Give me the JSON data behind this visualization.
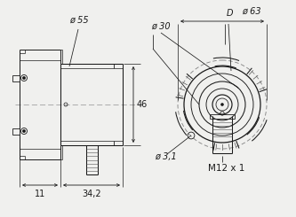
{
  "bg_color": "#f0f0ee",
  "line_color": "#1a1a1a",
  "dim_color": "#1a1a1a",
  "dim_55": "ø 55",
  "dim_30": "ø 30",
  "dim_63": "ø 63",
  "dim_46": "46",
  "dim_11": "11",
  "dim_34_2": "34,2",
  "dim_3_1": "ø 3,1",
  "dim_D": "D",
  "dim_M12": "M12 x 1",
  "font_size": 7.0
}
